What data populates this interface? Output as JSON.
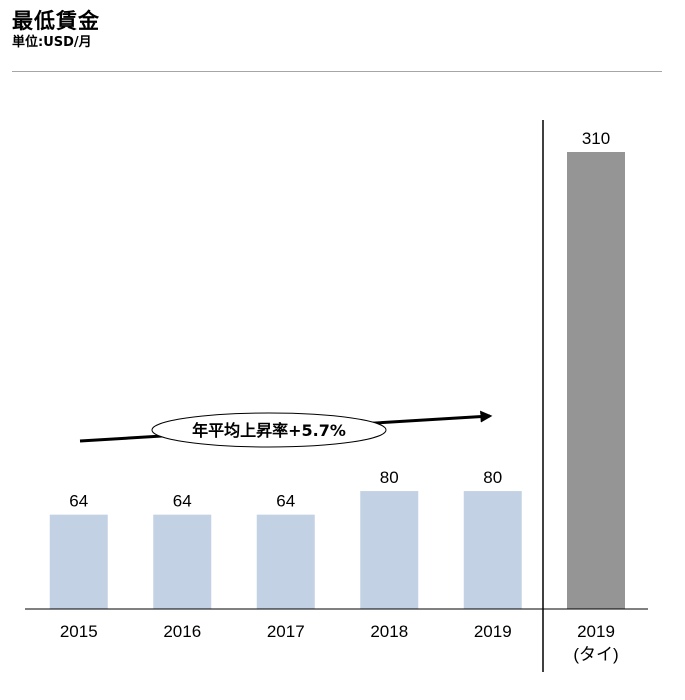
{
  "header": {
    "title": "最低賃金",
    "subtitle": "単位:USD/月"
  },
  "chart_data": {
    "type": "bar",
    "title": "最低賃金",
    "subtitle": "単位:USD/月",
    "xlabel": "",
    "ylabel": "",
    "categories": [
      "2015",
      "2016",
      "2017",
      "2018",
      "2019",
      "2019\n(タイ)"
    ],
    "category_lines": [
      [
        "2015"
      ],
      [
        "2016"
      ],
      [
        "2017"
      ],
      [
        "2018"
      ],
      [
        "2019"
      ],
      [
        "2019",
        "(タイ)"
      ]
    ],
    "values": [
      64,
      64,
      64,
      80,
      80,
      310
    ],
    "data_labels": [
      "64",
      "64",
      "64",
      "80",
      "80",
      "310"
    ],
    "bar_colors": [
      "#c3d1e4",
      "#c3d1e4",
      "#c3d1e4",
      "#c3d1e4",
      "#c3d1e4",
      "#959595"
    ],
    "ylim": [
      0,
      310
    ],
    "grid": false,
    "legend": "none",
    "annotation": {
      "text": "年平均上昇率+5.7%",
      "shape": "arrow-with-oval-label"
    },
    "separator_before_category": 5
  }
}
